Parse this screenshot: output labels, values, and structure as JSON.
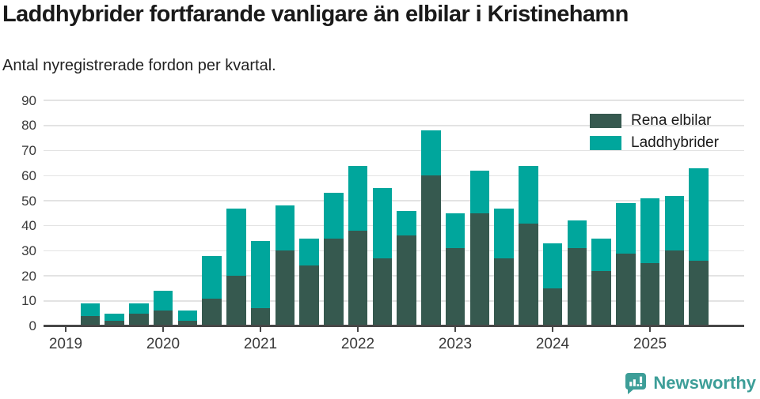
{
  "title": "Laddhybrider fortfarande vanligare än elbilar i Kristinehamn",
  "subtitle": "Antal nyregistrerade fordon per kvartal.",
  "colors": {
    "elbilar": "#36594f",
    "laddhybrider": "#00a69c",
    "brand": "#3d9e98",
    "axis": "#474747",
    "grid": "#e3e3e3",
    "tick_text": "#3a3a3a"
  },
  "legend": [
    {
      "label": "Rena elbilar",
      "color_key": "elbilar"
    },
    {
      "label": "Laddhybrider",
      "color_key": "laddhybrider"
    }
  ],
  "footer": {
    "brand_name": "Newsworthy",
    "logo_icon": "bar-chart-speech-bubble-icon"
  },
  "chart_data": {
    "type": "bar",
    "stacked": true,
    "title": "Laddhybrider fortfarande vanligare än elbilar i Kristinehamn",
    "subtitle": "Antal nyregistrerade fordon per kvartal.",
    "ylabel": "Antal nyregistrerade fordon",
    "ylim": [
      0,
      90
    ],
    "yticks": [
      0,
      10,
      20,
      30,
      40,
      50,
      60,
      70,
      80,
      90
    ],
    "grid": "horizontal",
    "legend_position": "top-right",
    "x_year_labels": [
      "2019",
      "2020",
      "2021",
      "2022",
      "2023",
      "2024",
      "2025"
    ],
    "quarters": [
      "2019-Q2",
      "2019-Q3",
      "2019-Q4",
      "2020-Q1",
      "2020-Q2",
      "2020-Q3",
      "2020-Q4",
      "2021-Q1",
      "2021-Q2",
      "2021-Q3",
      "2021-Q4",
      "2022-Q1",
      "2022-Q2",
      "2022-Q3",
      "2022-Q4",
      "2023-Q1",
      "2023-Q2",
      "2023-Q3",
      "2023-Q4",
      "2024-Q1",
      "2024-Q2",
      "2024-Q3",
      "2024-Q4",
      "2025-Q1",
      "2025-Q2",
      "2025-Q3"
    ],
    "series": [
      {
        "name": "Rena elbilar",
        "values": [
          4,
          2,
          5,
          6,
          2,
          11,
          20,
          7,
          30,
          24,
          35,
          38,
          27,
          36,
          60,
          31,
          45,
          27,
          41,
          15,
          31,
          22,
          29,
          25,
          30,
          26
        ]
      },
      {
        "name": "Laddhybrider",
        "values": [
          5,
          3,
          4,
          8,
          4,
          17,
          27,
          27,
          18,
          11,
          18,
          26,
          28,
          10,
          18,
          14,
          17,
          20,
          23,
          18,
          11,
          13,
          20,
          26,
          22,
          37
        ]
      }
    ],
    "totals": [
      9,
      5,
      9,
      14,
      6,
      28,
      47,
      34,
      48,
      35,
      53,
      64,
      55,
      46,
      78,
      45,
      62,
      47,
      64,
      33,
      42,
      35,
      49,
      51,
      52,
      63
    ]
  }
}
